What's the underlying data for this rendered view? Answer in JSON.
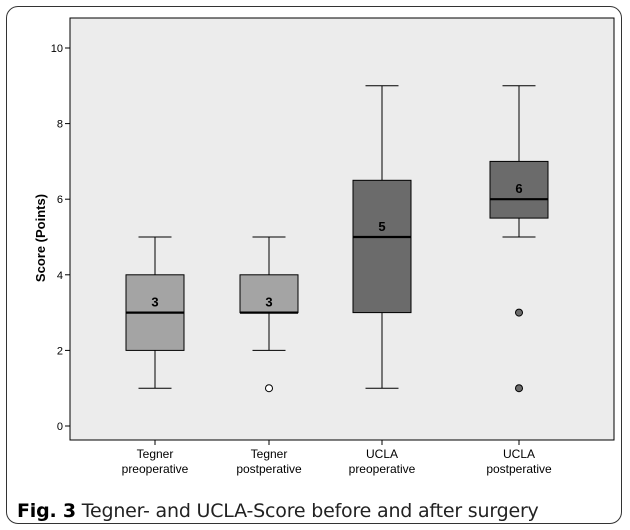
{
  "caption": {
    "label": "Fig. 3",
    "text": "Tegner- and UCLA-Score before and after surgery"
  },
  "chart_data": {
    "type": "boxplot",
    "ylabel": "Score (Points)",
    "ylim": [
      0,
      10
    ],
    "yticks": [
      "0",
      "2",
      "4",
      "6",
      "8",
      "10"
    ],
    "plot_background": "#ececec",
    "grid": false,
    "categories": [
      {
        "line1": "Tegner",
        "line2": "preoperative"
      },
      {
        "line1": "Tegner",
        "line2": "postperative"
      },
      {
        "line1": "UCLA",
        "line2": "preoperative"
      },
      {
        "line1": "UCLA",
        "line2": "postperative"
      }
    ],
    "boxes": [
      {
        "min": 1,
        "q1": 2,
        "median": 3,
        "q3": 4,
        "max": 5,
        "median_label": "3",
        "outliers": [],
        "fill": "#a4a4a4",
        "outlier_fill": "#ffffff"
      },
      {
        "min": 2,
        "q1": 3,
        "median": 3,
        "q3": 4,
        "max": 5,
        "median_label": "3",
        "outliers": [
          1
        ],
        "fill": "#a4a4a4",
        "outlier_fill": "#ffffff"
      },
      {
        "min": 1,
        "q1": 3,
        "median": 5,
        "q3": 6.5,
        "max": 9,
        "median_label": "5",
        "outliers": [],
        "fill": "#6b6b6b",
        "outlier_fill": "#6b6b6b"
      },
      {
        "min": 5,
        "q1": 5.5,
        "median": 6,
        "q3": 7,
        "max": 9,
        "median_label": "6",
        "outliers": [
          3,
          1
        ],
        "fill": "#6b6b6b",
        "outlier_fill": "#6b6b6b"
      }
    ]
  }
}
